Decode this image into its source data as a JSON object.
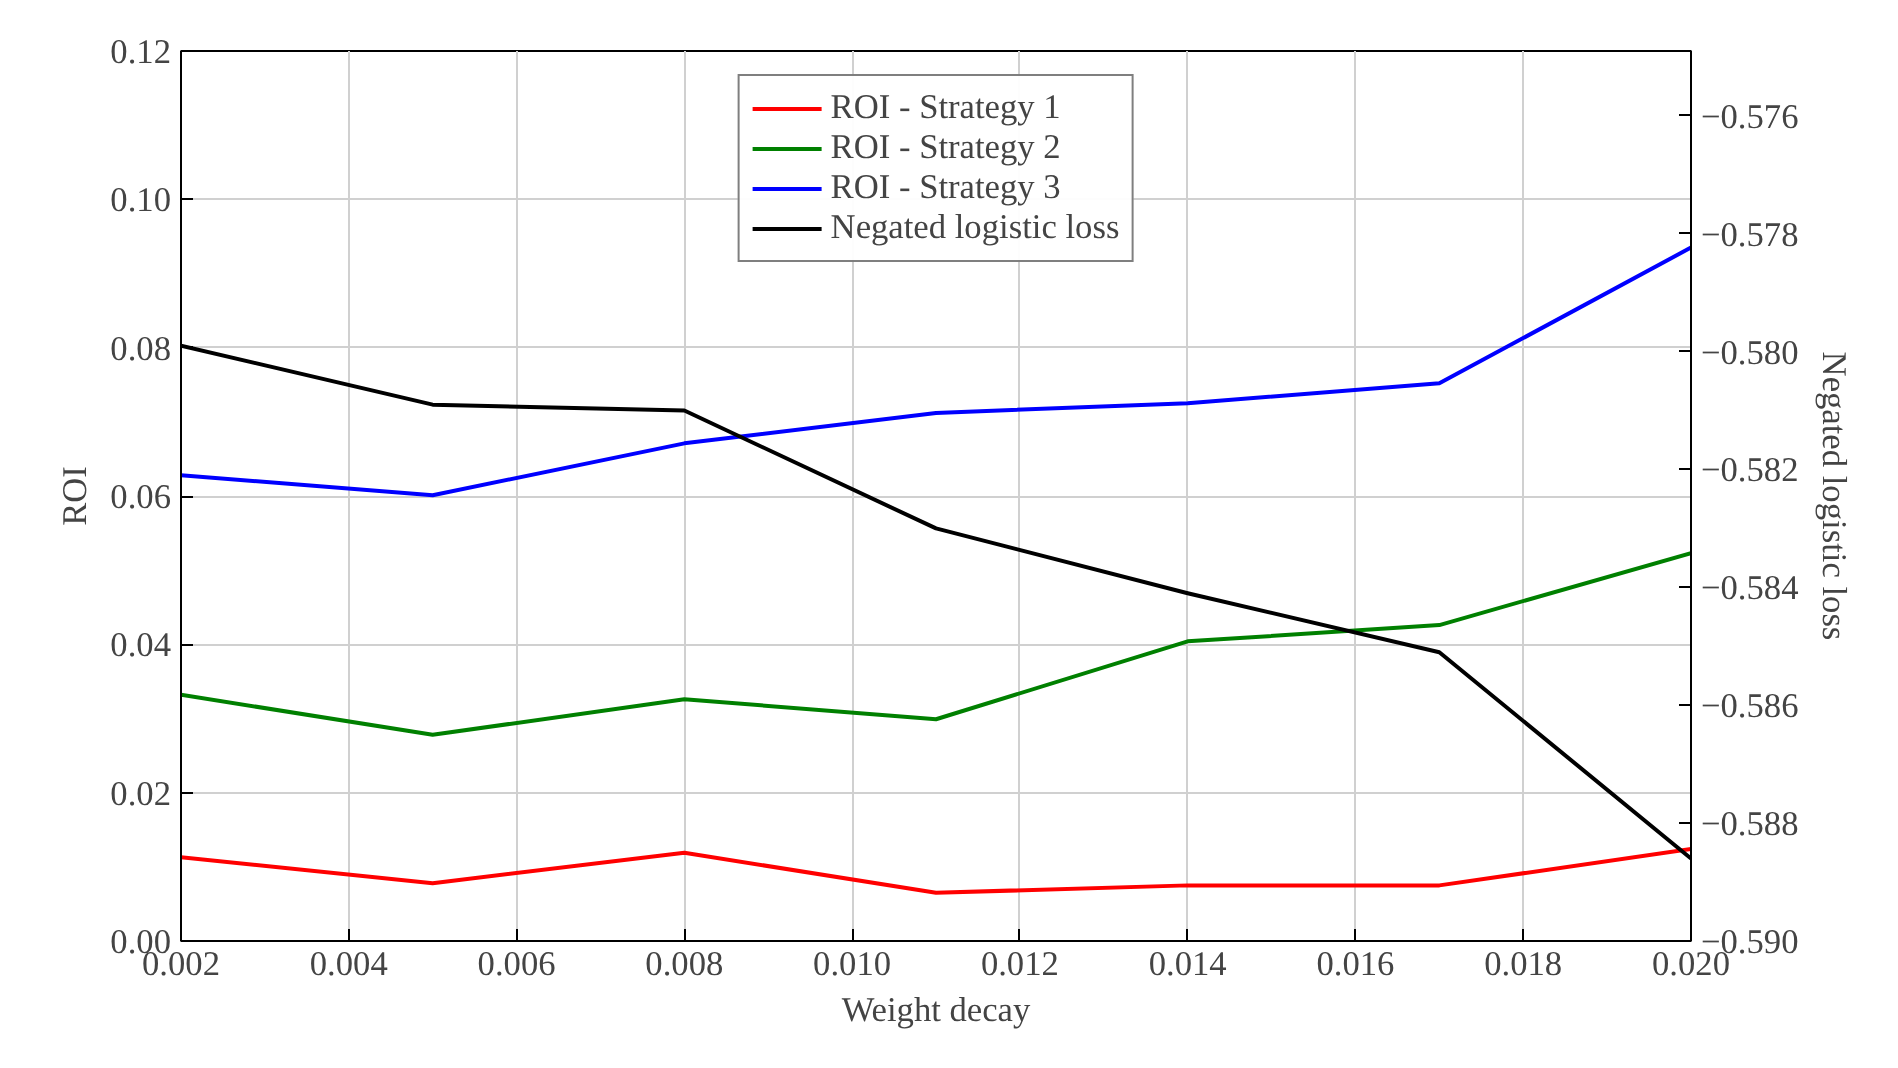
{
  "chart_data": {
    "type": "line",
    "xlabel": "Weight decay",
    "ylabel": "ROI",
    "y2label": "Negated logistic loss",
    "x": [
      0.002,
      0.005,
      0.008,
      0.011,
      0.014,
      0.017,
      0.02
    ],
    "xlim": [
      0.002,
      0.02
    ],
    "xticks": [
      0.002,
      0.004,
      0.006,
      0.008,
      {
        "value": 0.01,
        "label": "0.010"
      },
      0.012,
      0.014,
      0.016,
      0.018,
      {
        "value": 0.02,
        "label": "0.020"
      }
    ],
    "ylim": [
      0,
      0.12
    ],
    "yticks": [
      {
        "value": 0,
        "label": "0.00"
      },
      0.02,
      0.04,
      0.06,
      0.08,
      {
        "value": 0.1,
        "label": "0.10"
      },
      0.12
    ],
    "y2lim": [
      -0.59,
      -0.5749
    ],
    "y2ticks": [
      {
        "value": -0.59,
        "label": "−0.590"
      },
      {
        "value": -0.588,
        "label": "−0.588"
      },
      {
        "value": -0.586,
        "label": "−0.586"
      },
      {
        "value": -0.584,
        "label": "−0.584"
      },
      {
        "value": -0.582,
        "label": "−0.582"
      },
      {
        "value": -0.58,
        "label": "−0.580"
      },
      {
        "value": -0.578,
        "label": "−0.578"
      },
      {
        "value": -0.576,
        "label": "−0.576"
      }
    ],
    "grid": true,
    "legend": "top",
    "marker": "none",
    "line_style": "solid",
    "series": [
      {
        "name": "ROI - Strategy 1",
        "color": "#ff0000",
        "values": [
          0.0113,
          0.0078,
          0.0119,
          0.0065,
          0.0075,
          0.0075,
          0.0124
        ]
      },
      {
        "name": "ROI - Strategy 2",
        "color": "#008000",
        "values": [
          0.0332,
          0.0278,
          0.0326,
          0.0299,
          0.0404,
          0.0426,
          0.0523
        ]
      },
      {
        "name": "ROI - Strategy 3",
        "color": "#0000ff",
        "values": [
          0.0628,
          0.0601,
          0.0671,
          0.0712,
          0.0725,
          0.0752,
          0.0935
        ]
      },
      {
        "name": "Negated logistic loss",
        "color": "#000000",
        "axis": "y2",
        "values": [
          -0.5799,
          -0.5809,
          -0.581,
          -0.583,
          -0.5841,
          -0.5851,
          -0.5886
        ]
      }
    ]
  }
}
